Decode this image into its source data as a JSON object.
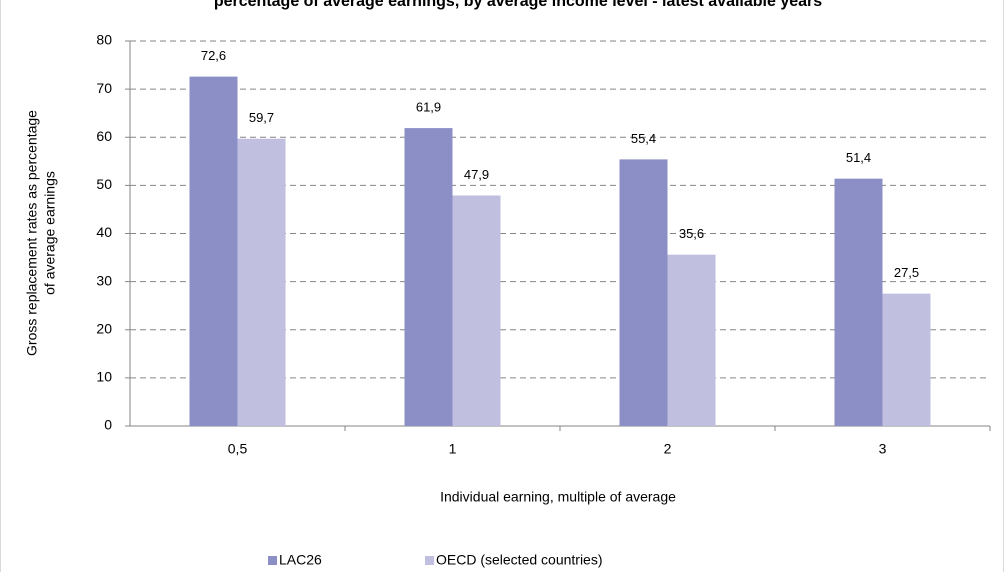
{
  "chart_data": {
    "type": "bar",
    "title": "percentage of average earnings, by average income level - latest available years",
    "x_label": "Individual earning, multiple of average",
    "y_label": [
      "Gross replacement rates as percentage",
      "of average earnings"
    ],
    "categories": [
      "0,5",
      "1",
      "2",
      "3"
    ],
    "series": [
      {
        "name": "LAC26",
        "color": "#8b8fc6",
        "values": [
          72.6,
          61.9,
          55.4,
          51.4
        ],
        "value_labels": [
          "72,6",
          "61,9",
          "55,4",
          "51,4"
        ]
      },
      {
        "name": "OECD (selected countries)",
        "color": "#c0bfe0",
        "values": [
          59.7,
          47.9,
          35.6,
          27.5
        ],
        "value_labels": [
          "59,7",
          "47,9",
          "35,6",
          "27,5"
        ]
      }
    ],
    "ylim": [
      0,
      80
    ],
    "yticks": [
      0,
      10,
      20,
      30,
      40,
      50,
      60,
      70,
      80
    ],
    "grid": true,
    "legend": "bottom"
  }
}
